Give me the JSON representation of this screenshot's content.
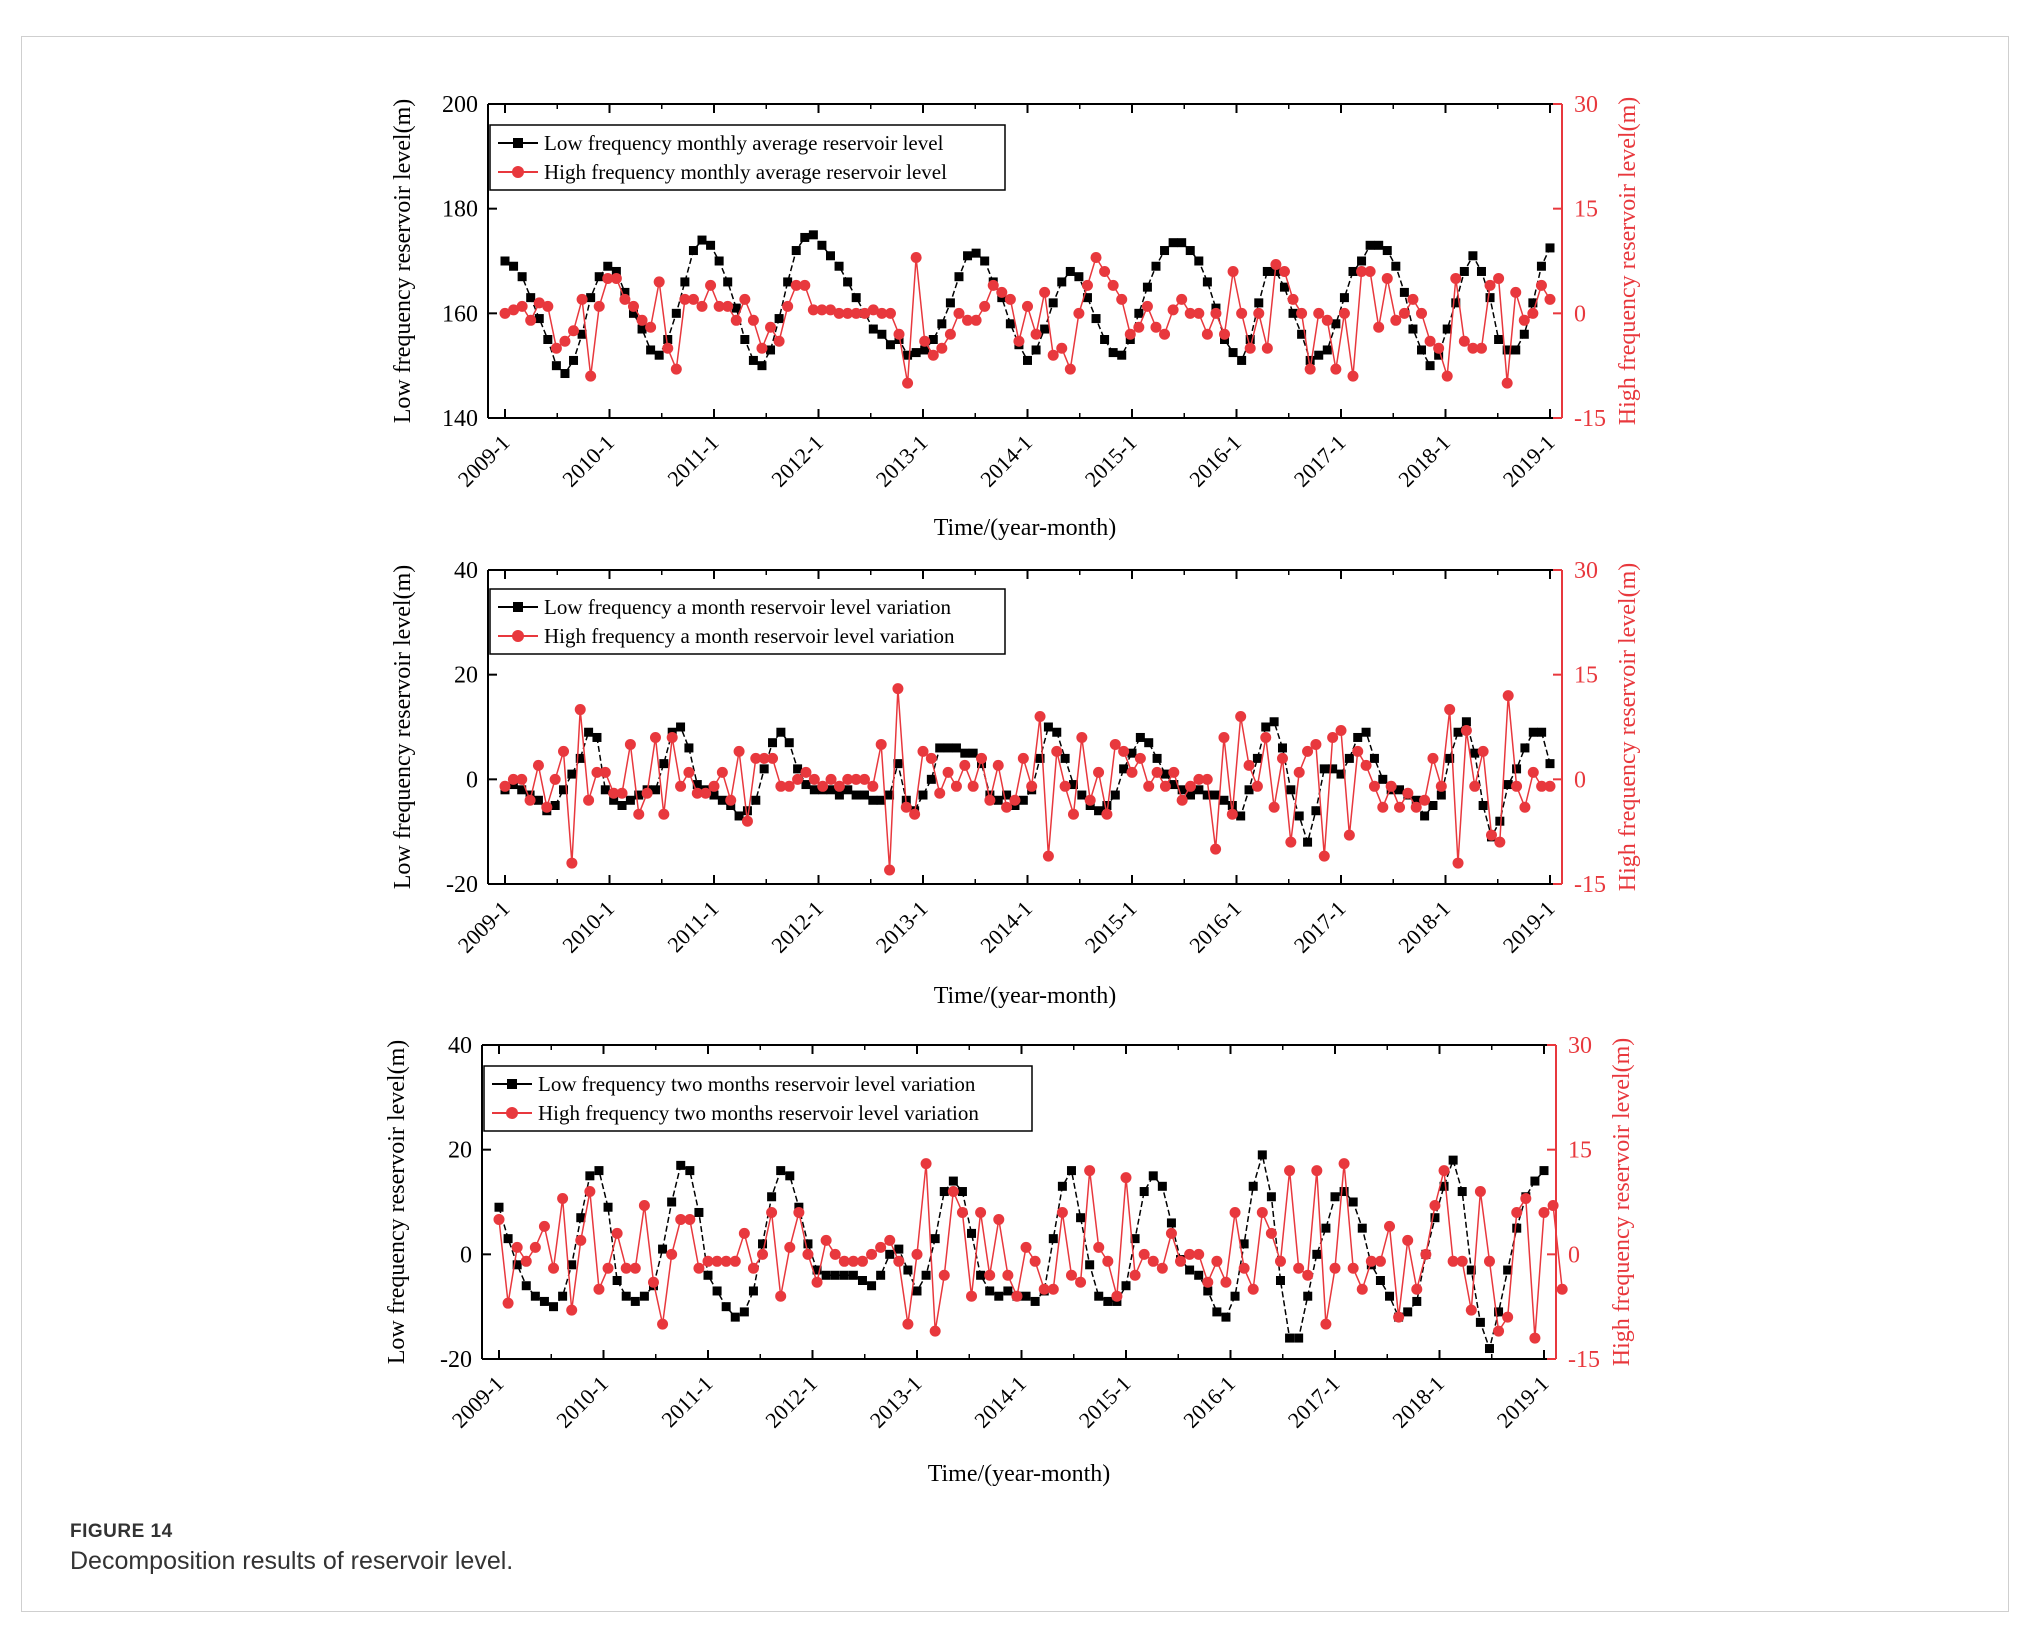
{
  "figure": {
    "label": "FIGURE 14",
    "caption": "Decomposition results of reservoir level."
  },
  "colors": {
    "low": "#000000",
    "high": "#e8383d",
    "axis_right": "#e8383d"
  },
  "chart_data": [
    {
      "type": "line",
      "xlabel": "Time/(year-month)",
      "ylabel_left": "Low frequency reservoir level(m)",
      "ylabel_right": "High frequency reservoir level(m)",
      "ylim_left": [
        140,
        200
      ],
      "ylim_right": [
        -15,
        30
      ],
      "yticks_left": [
        "140",
        "160",
        "180",
        "200"
      ],
      "yticks_right": [
        "-15",
        "0",
        "15",
        "30"
      ],
      "x_ticks": [
        "2009-1",
        "2010-1",
        "2011-1",
        "2012-1",
        "2013-1",
        "2014-1",
        "2015-1",
        "2016-1",
        "2017-1",
        "2018-1",
        "2019-1"
      ],
      "legend": "top-left",
      "series": [
        {
          "name": "Low frequency monthly average reservoir level",
          "axis": "left",
          "values": [
            170,
            169,
            167,
            163,
            159,
            155,
            150,
            148.5,
            151,
            156,
            163,
            167,
            169,
            168,
            164,
            160,
            157,
            153,
            152,
            155,
            160,
            166,
            172,
            174,
            173,
            170,
            166,
            161,
            155,
            151,
            150,
            153,
            159,
            166,
            172,
            174.5,
            175,
            173,
            171,
            169,
            166,
            163,
            160,
            157,
            156,
            154,
            155,
            152,
            152.5,
            153,
            155,
            158,
            162,
            167,
            171,
            171.5,
            170,
            166,
            163,
            158,
            154,
            151,
            153,
            157,
            162,
            166,
            168,
            167,
            163,
            159,
            155,
            152.5,
            152,
            155,
            160,
            165,
            169,
            172,
            173.5,
            173.5,
            172,
            170,
            166,
            161,
            155,
            152.5,
            151,
            155,
            162,
            168,
            168,
            165,
            160,
            156,
            151,
            152,
            153,
            158,
            163,
            168,
            170,
            173,
            173,
            172,
            169,
            164,
            157,
            153,
            150,
            152,
            157,
            162,
            168,
            171,
            168,
            163,
            155,
            153,
            153,
            156,
            162,
            169,
            172.5
          ]
        },
        {
          "name": "High frequency monthly average reservoir level",
          "axis": "right",
          "values": [
            0,
            0.5,
            1,
            -1,
            1.5,
            1,
            -5,
            -4,
            -2.5,
            2,
            -9,
            1,
            5,
            5,
            2,
            1,
            -1,
            -2,
            4.5,
            -5,
            -8,
            2,
            2,
            1,
            4,
            1,
            1,
            -1,
            2,
            -1,
            -5,
            -2,
            -4,
            1,
            4,
            4,
            0.5,
            0.5,
            0.5,
            0,
            0,
            0,
            0,
            0.5,
            0,
            0,
            -3,
            -10,
            8,
            -4,
            -6,
            -5,
            -3,
            0,
            -1,
            -1,
            1,
            4,
            3,
            2,
            -4,
            1,
            -3,
            3,
            -6,
            -5,
            -8,
            0,
            4,
            8,
            6,
            4,
            2,
            -3,
            -2,
            1,
            -2,
            -3,
            0.5,
            2,
            0,
            0,
            -3,
            0,
            -3,
            6,
            0,
            -5,
            0,
            -5,
            7,
            6,
            2,
            0,
            -8,
            0,
            -1,
            -8,
            0,
            -9,
            6,
            6,
            -2,
            5,
            -1,
            0,
            2,
            0,
            -4,
            -5,
            -9,
            5,
            -4,
            -5,
            -5,
            4,
            5,
            -10,
            3,
            -1,
            0,
            4,
            2
          ]
        }
      ]
    },
    {
      "type": "line",
      "xlabel": "Time/(year-month)",
      "ylabel_left": "Low frequency reservoir level(m)",
      "ylabel_right": "High frequency reservoir level(m)",
      "ylim_left": [
        -20,
        40
      ],
      "ylim_right": [
        -15,
        30
      ],
      "yticks_left": [
        "-20",
        "0",
        "20",
        "40"
      ],
      "yticks_right": [
        "-15",
        "0",
        "15",
        "30"
      ],
      "x_ticks": [
        "2009-1",
        "2010-1",
        "2011-1",
        "2012-1",
        "2013-1",
        "2014-1",
        "2015-1",
        "2016-1",
        "2017-1",
        "2018-1",
        "2019-1"
      ],
      "legend": "top-left",
      "series": [
        {
          "name": "Low frequency a month reservoir level variation",
          "axis": "left",
          "values": [
            -2,
            -1,
            -2,
            -3,
            -4,
            -6,
            -5,
            -2,
            1,
            4,
            9,
            8,
            -2,
            -4,
            -5,
            -4,
            -3,
            -2,
            -2,
            3,
            9,
            10,
            6,
            -1,
            -2,
            -3,
            -4,
            -5,
            -7,
            -6,
            -4,
            2,
            7,
            9,
            7,
            2,
            -1,
            -2,
            -2,
            -2,
            -3,
            -2,
            -3,
            -3,
            -4,
            -4,
            -3,
            3,
            -4,
            -6,
            -3,
            0,
            6,
            6,
            6,
            5,
            5,
            3,
            -3,
            -4,
            -3,
            -5,
            -4,
            -2,
            4,
            10,
            9,
            4,
            -1,
            -3,
            -5,
            -6,
            -5,
            -3,
            2,
            5,
            8,
            7,
            4,
            1,
            -1,
            -2,
            -3,
            -2,
            -3,
            -3,
            -4,
            -5,
            -7,
            -2,
            4,
            10,
            11,
            6,
            -2,
            -7,
            -12,
            -6,
            2,
            2,
            1,
            4,
            8,
            9,
            4,
            0,
            -2,
            -2,
            -3,
            -4,
            -7,
            -5,
            -3,
            4,
            9,
            11,
            5,
            -5,
            -11,
            -8,
            -1,
            2,
            6,
            9,
            9,
            3
          ]
        },
        {
          "name": "High frequency a month reservoir level variation",
          "axis": "right",
          "values": [
            -1,
            0,
            0,
            -3,
            2,
            -4,
            0,
            4,
            -12,
            10,
            -3,
            1,
            1,
            -2,
            -2,
            5,
            -5,
            -2,
            6,
            -5,
            6,
            -1,
            1,
            -2,
            -2,
            -1,
            1,
            -3,
            4,
            -6,
            3,
            3,
            3,
            -1,
            -1,
            0,
            1,
            0,
            -1,
            0,
            -1,
            0,
            0,
            0,
            -1,
            5,
            -13,
            13,
            -4,
            -5,
            4,
            3,
            -2,
            1,
            -1,
            2,
            -1,
            3,
            -3,
            2,
            -4,
            -3,
            3,
            -1,
            9,
            -11,
            4,
            -1,
            -5,
            6,
            -3,
            1,
            -5,
            5,
            4,
            1,
            3,
            -1,
            1,
            -1,
            1,
            -3,
            -1,
            0,
            0,
            -10,
            6,
            -5,
            9,
            2,
            -1,
            6,
            -4,
            3,
            -9,
            1,
            4,
            5,
            -11,
            6,
            7,
            -8,
            4,
            2,
            -1,
            -4,
            -1,
            -4,
            -2,
            -4,
            -3,
            3,
            -1,
            10,
            -12,
            7,
            -1,
            4,
            -8,
            -9,
            12,
            -1,
            -4,
            1,
            -1,
            -1
          ]
        }
      ]
    },
    {
      "type": "line",
      "xlabel": "Time/(year-month)",
      "ylabel_left": "Low frequency reservoir level(m)",
      "ylabel_right": "High frequency reservoir level(m)",
      "ylim_left": [
        -20,
        40
      ],
      "ylim_right": [
        -15,
        30
      ],
      "yticks_left": [
        "-20",
        "0",
        "20",
        "40"
      ],
      "yticks_right": [
        "-15",
        "0",
        "15",
        "30"
      ],
      "x_ticks": [
        "2009-1",
        "2010-1",
        "2011-1",
        "2012-1",
        "2013-1",
        "2014-1",
        "2015-1",
        "2016-1",
        "2017-1",
        "2018-1",
        "2019-1"
      ],
      "legend": "top-left",
      "series": [
        {
          "name": "Low frequency two months reservoir level variation",
          "axis": "left",
          "values": [
            9,
            3,
            -2,
            -6,
            -8,
            -9,
            -10,
            -8,
            -2,
            7,
            15,
            16,
            9,
            -5,
            -8,
            -9,
            -8,
            -6,
            1,
            10,
            17,
            16,
            8,
            -4,
            -7,
            -10,
            -12,
            -11,
            -7,
            2,
            11,
            16,
            15,
            9,
            2,
            -3,
            -4,
            -4,
            -4,
            -4,
            -5,
            -6,
            -4,
            0,
            1,
            -3,
            -7,
            -4,
            3,
            12,
            14,
            12,
            4,
            -4,
            -7,
            -8,
            -7,
            -8,
            -8,
            -9,
            -7,
            3,
            13,
            16,
            7,
            -2,
            -8,
            -9,
            -9,
            -6,
            3,
            12,
            15,
            13,
            6,
            -1,
            -3,
            -4,
            -7,
            -11,
            -12,
            -8,
            2,
            13,
            19,
            11,
            -5,
            -16,
            -16,
            -8,
            0,
            5,
            11,
            12,
            10,
            5,
            -2,
            -5,
            -8,
            -12,
            -11,
            -9,
            0,
            7,
            13,
            18,
            12,
            -3,
            -13,
            -18,
            -11,
            -3,
            5,
            11,
            14,
            16
          ]
        },
        {
          "name": "High frequency two months reservoir level variation",
          "axis": "right",
          "values": [
            5,
            -7,
            1,
            -1,
            1,
            4,
            -2,
            8,
            -8,
            2,
            9,
            -5,
            -2,
            3,
            -2,
            -2,
            7,
            -4,
            -10,
            0,
            5,
            5,
            -2,
            -1,
            -1,
            -1,
            -1,
            3,
            -2,
            0,
            6,
            -6,
            1,
            6,
            0,
            -4,
            2,
            0,
            -1,
            -1,
            -1,
            0,
            1,
            2,
            -1,
            -10,
            0,
            13,
            -11,
            -3,
            9,
            6,
            -6,
            6,
            -3,
            5,
            -3,
            -6,
            1,
            -1,
            -5,
            -5,
            6,
            -3,
            -4,
            12,
            1,
            -1,
            -6,
            11,
            -3,
            0,
            -1,
            -2,
            3,
            -1,
            0,
            0,
            -4,
            -1,
            -4,
            6,
            -2,
            -5,
            6,
            3,
            -1,
            12,
            -2,
            -3,
            12,
            -10,
            -2,
            13,
            -2,
            -5,
            -1,
            -1,
            4,
            -9,
            2,
            -5,
            0,
            7,
            12,
            -1,
            -1,
            -8,
            9,
            -1,
            -11,
            -9,
            6,
            8,
            -12,
            6,
            7,
            -5
          ]
        }
      ]
    }
  ]
}
